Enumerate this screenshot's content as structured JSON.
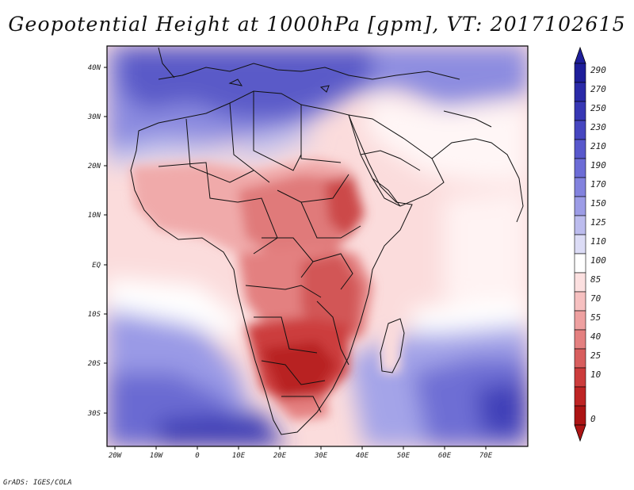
{
  "title": "Geopotential Height at 1000hPa [gpm], VT: 2017102615",
  "credit": "GrADS: IGES/COLA",
  "axes": {
    "lon_labels": [
      "20W",
      "10W",
      "0",
      "10E",
      "20E",
      "30E",
      "40E",
      "50E",
      "60E",
      "70E"
    ],
    "lat_labels": [
      "40N",
      "30N",
      "20N",
      "10N",
      "EQ",
      "10S",
      "20S",
      "30S"
    ]
  },
  "colorbar": {
    "labels": [
      "290",
      "270",
      "250",
      "230",
      "210",
      "190",
      "170",
      "150",
      "125",
      "110",
      "100",
      "85",
      "70",
      "55",
      "40",
      "25",
      "10",
      "0"
    ],
    "colors": [
      "#1e1e9a",
      "#2a2aa8",
      "#3737b4",
      "#4646c0",
      "#5858cc",
      "#6c6cd6",
      "#8282de",
      "#9c9ce6",
      "#bcbcee",
      "#dcdcf6",
      "#ffffff",
      "#fce0e0",
      "#f6c0c0",
      "#eea0a0",
      "#e48080",
      "#d85e5e",
      "#cc3c3c",
      "#be2424",
      "#ac1414"
    ]
  },
  "colors": {
    "frame": "#000000",
    "land_border": "#111111"
  }
}
